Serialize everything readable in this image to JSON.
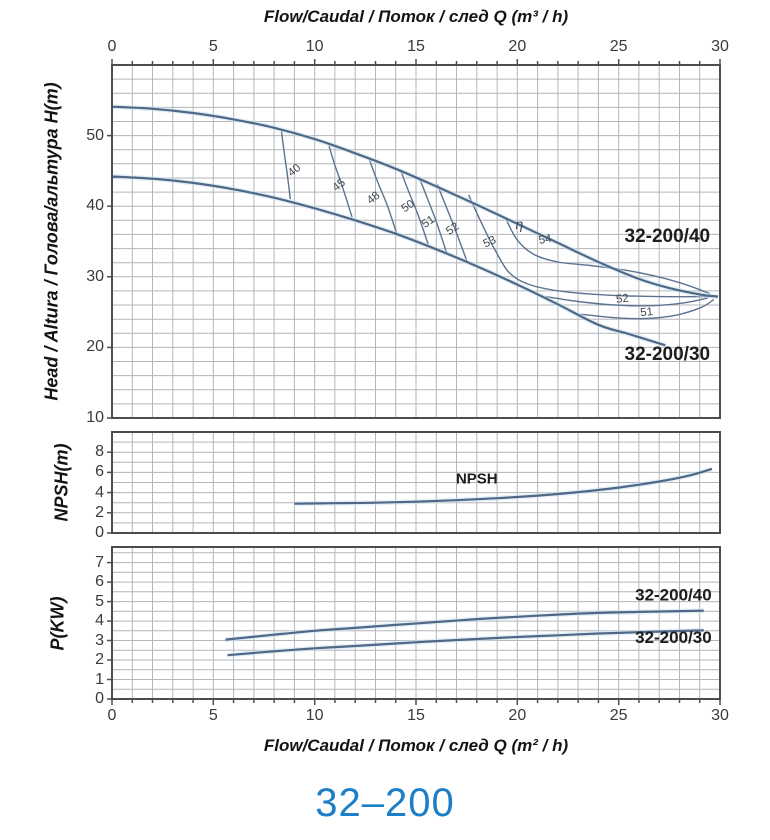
{
  "page": {
    "footer_model": "32–200"
  },
  "colors": {
    "accent_blue": "#1b7ec6",
    "curve_stroke": "#4f6885",
    "contour_stroke": "#5b7390",
    "halo": "#cfe3f2",
    "grid": "#b3b6ba",
    "frame": "#4a4e53",
    "model_label": "#1d1d1d",
    "eff_label": "#424852"
  },
  "axes": {
    "top_title": "Flow/Caudal / Поток / след  Q (m³ / h)",
    "bottom_title": "Flow/Caudal / Поток / след  Q (m² / h)",
    "head_axis_label": "Head / Altura / Голова/альтура H(m)",
    "npsh_axis_label": "NPSH(m)",
    "power_axis_label": "P(KW)"
  },
  "chart_data": [
    {
      "type": "line",
      "title": "Head vs Flow pump curves",
      "xlabel": "Flow/Caudal / Поток / след  Q (m³ / h)",
      "ylabel": "Head / Altura / Голова/альтура H(m)",
      "xlim": [
        0,
        30
      ],
      "ylim": [
        10,
        60
      ],
      "x_ticks": [
        0,
        5,
        10,
        15,
        20,
        25,
        30
      ],
      "y_ticks": [
        10,
        20,
        30,
        40,
        50
      ],
      "grid": "on",
      "series": [
        {
          "name": "32-200/40",
          "points": [
            [
              0,
              54.1
            ],
            [
              2,
              53.8
            ],
            [
              4,
              53.2
            ],
            [
              6,
              52.3
            ],
            [
              8,
              51.1
            ],
            [
              10,
              49.5
            ],
            [
              12,
              47.5
            ],
            [
              14,
              45.3
            ],
            [
              16,
              42.8
            ],
            [
              18,
              40.2
            ],
            [
              20,
              37.5
            ],
            [
              22,
              34.8
            ],
            [
              24,
              32.1
            ],
            [
              26,
              29.7
            ],
            [
              27.5,
              28.4
            ],
            [
              29,
              27.5
            ],
            [
              29.9,
              27.2
            ]
          ]
        },
        {
          "name": "32-200/30",
          "points": [
            [
              0,
              44.2
            ],
            [
              2,
              43.9
            ],
            [
              4,
              43.3
            ],
            [
              6,
              42.4
            ],
            [
              8,
              41.2
            ],
            [
              10,
              39.7
            ],
            [
              12,
              38.0
            ],
            [
              14,
              36.1
            ],
            [
              16,
              33.9
            ],
            [
              18,
              31.5
            ],
            [
              20,
              28.9
            ],
            [
              22,
              26.1
            ],
            [
              24,
              23.2
            ],
            [
              25.5,
              21.9
            ],
            [
              27.3,
              20.3
            ]
          ]
        }
      ],
      "efficiency_contours": [
        {
          "label": "40",
          "label_at": [
            9.1,
            44.7
          ],
          "label_rot": -38,
          "points": [
            [
              8.35,
              50.9
            ],
            [
              8.5,
              47.5
            ],
            [
              8.65,
              44.5
            ],
            [
              8.8,
              41.0
            ]
          ]
        },
        {
          "label": "45",
          "label_at": [
            11.3,
            42.6
          ],
          "label_rot": -38,
          "points": [
            [
              10.7,
              48.6
            ],
            [
              11.0,
              45.8
            ],
            [
              11.4,
              42.5
            ],
            [
              11.85,
              38.4
            ]
          ]
        },
        {
          "label": "48",
          "label_at": [
            13.0,
            40.8
          ],
          "label_rot": -38,
          "points": [
            [
              12.7,
              46.6
            ],
            [
              13.1,
              43.5
            ],
            [
              13.6,
              40.0
            ],
            [
              14.05,
              36.1
            ]
          ]
        },
        {
          "label": "50",
          "label_at": [
            14.7,
            39.6
          ],
          "label_rot": -35,
          "points": [
            [
              14.25,
              45.0
            ],
            [
              14.65,
              42.0
            ],
            [
              15.1,
              38.8
            ],
            [
              15.6,
              34.6
            ]
          ]
        },
        {
          "label": "51",
          "label_at": [
            15.7,
            37.4
          ],
          "label_rot": -35,
          "points": [
            [
              15.15,
              44.1
            ],
            [
              15.55,
              41.2
            ],
            [
              16.0,
              37.8
            ],
            [
              16.5,
              33.5
            ]
          ]
        },
        {
          "label": "52",
          "label_at": [
            16.9,
            36.4
          ],
          "label_rot": -35,
          "points": [
            [
              16.05,
              43.1
            ],
            [
              16.45,
              40.2
            ],
            [
              16.95,
              36.6
            ],
            [
              17.5,
              32.3
            ]
          ]
        },
        {
          "label": "53",
          "label_at": [
            18.7,
            34.5
          ],
          "label_rot": -25,
          "points": [
            [
              17.6,
              41.6
            ],
            [
              18.2,
              37.8
            ],
            [
              18.9,
              33.8
            ],
            [
              19.6,
              30.6
            ],
            [
              20.6,
              28.9
            ],
            [
              22.3,
              27.9
            ],
            [
              24.5,
              27.4
            ],
            [
              27.0,
              27.2
            ],
            [
              29.6,
              27.2
            ]
          ]
        },
        {
          "label": "54",
          "label_at": [
            21.4,
            34.8
          ],
          "label_rot": -10,
          "points": [
            [
              19.4,
              38.4
            ],
            [
              20.0,
              35.2
            ],
            [
              20.8,
              33.2
            ],
            [
              22.0,
              32.1
            ],
            [
              23.6,
              31.6
            ],
            [
              25.2,
              31.0
            ],
            [
              26.8,
              30.1
            ],
            [
              28.3,
              28.9
            ],
            [
              29.5,
              27.6
            ]
          ]
        },
        {
          "label": "52",
          "label_at": [
            25.2,
            26.4
          ],
          "label_rot": -6,
          "points": [
            [
              21.4,
              27.2
            ],
            [
              23.0,
              26.5
            ],
            [
              24.8,
              26.0
            ],
            [
              26.6,
              25.9
            ],
            [
              28.2,
              26.3
            ],
            [
              29.4,
              27.0
            ]
          ]
        },
        {
          "label": "51",
          "label_at": [
            26.4,
            24.5
          ],
          "label_rot": -6,
          "points": [
            [
              23.1,
              24.7
            ],
            [
              24.8,
              24.2
            ],
            [
              26.4,
              24.1
            ],
            [
              27.9,
              24.6
            ],
            [
              29.1,
              25.7
            ],
            [
              29.7,
              26.8
            ]
          ]
        }
      ],
      "annotations": [
        {
          "text": "32-200/40",
          "x": 27.4,
          "y": 34.9,
          "style": "model"
        },
        {
          "text": "32-200/30",
          "x": 27.4,
          "y": 18.2,
          "style": "model"
        },
        {
          "text": "η",
          "x": 20.1,
          "y": 36.8,
          "style": "eta"
        }
      ]
    },
    {
      "type": "line",
      "title": "NPSH vs Flow",
      "ylabel": "NPSH(m)",
      "xlim": [
        0,
        30
      ],
      "ylim": [
        0,
        10
      ],
      "y_ticks": [
        0,
        2,
        4,
        6,
        8
      ],
      "grid": "on",
      "series": [
        {
          "name": "NPSH",
          "label_at": [
            18.0,
            4.9
          ],
          "points": [
            [
              9,
              2.9
            ],
            [
              11,
              2.95
            ],
            [
              13,
              3.0
            ],
            [
              15,
              3.1
            ],
            [
              17,
              3.25
            ],
            [
              19,
              3.45
            ],
            [
              21,
              3.7
            ],
            [
              23,
              4.05
            ],
            [
              25,
              4.5
            ],
            [
              27,
              5.1
            ],
            [
              28.5,
              5.7
            ],
            [
              29.6,
              6.35
            ]
          ]
        }
      ]
    },
    {
      "type": "line",
      "title": "Power vs Flow",
      "xlabel": "Flow/Caudal / Поток / след  Q (m² / h)",
      "ylabel": "P(KW)",
      "xlim": [
        0,
        30
      ],
      "ylim": [
        0,
        7.8
      ],
      "x_ticks": [
        0,
        5,
        10,
        15,
        20,
        25,
        30
      ],
      "y_ticks": [
        0,
        1,
        2,
        3,
        4,
        5,
        6,
        7
      ],
      "grid": "on",
      "series": [
        {
          "name": "32-200/40",
          "label_at": [
            27.7,
            5.05
          ],
          "points": [
            [
              5.6,
              3.05
            ],
            [
              8,
              3.3
            ],
            [
              10,
              3.5
            ],
            [
              12,
              3.65
            ],
            [
              14,
              3.8
            ],
            [
              16,
              3.95
            ],
            [
              18,
              4.1
            ],
            [
              20,
              4.22
            ],
            [
              22,
              4.33
            ],
            [
              24,
              4.42
            ],
            [
              26,
              4.47
            ],
            [
              28,
              4.51
            ],
            [
              29.2,
              4.53
            ]
          ]
        },
        {
          "name": "32-200/30",
          "label_at": [
            27.7,
            2.88
          ],
          "points": [
            [
              5.7,
              2.25
            ],
            [
              8,
              2.45
            ],
            [
              10,
              2.6
            ],
            [
              12,
              2.72
            ],
            [
              14,
              2.85
            ],
            [
              16,
              2.97
            ],
            [
              18,
              3.08
            ],
            [
              20,
              3.18
            ],
            [
              22,
              3.27
            ],
            [
              24,
              3.36
            ],
            [
              26,
              3.43
            ],
            [
              28,
              3.49
            ],
            [
              29.2,
              3.52
            ]
          ]
        }
      ]
    }
  ]
}
